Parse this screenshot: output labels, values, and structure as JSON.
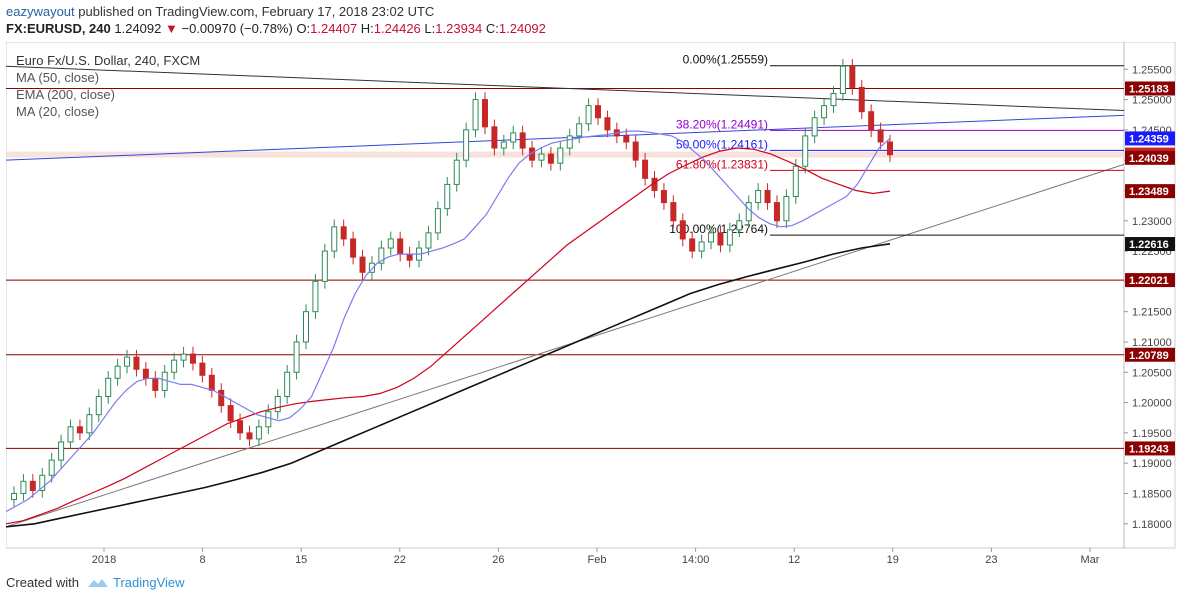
{
  "header": {
    "author": "eazywayout",
    "published": "published on TradingView.com, February 17, 2018 23:02 UTC",
    "symbol": "FX:EURUSD, 240",
    "last": "1.24092",
    "change": "−0.00970 (−0.78%)",
    "open_label": "O:",
    "open": "1.24407",
    "high_label": "H:",
    "high": "1.24426",
    "low_label": "L:",
    "low": "1.23934",
    "close_label": "C:",
    "close": "1.24092"
  },
  "legend": {
    "title": "Euro Fx/U.S. Dollar, 240, FXCM",
    "ma50": "MA (50, close)",
    "ema200": "EMA (200, close)",
    "ma20": "MA (20, close)"
  },
  "footer": {
    "created_with": "Created with",
    "brand": "TradingView",
    "logo_icon": "tradingview-logo-icon"
  },
  "colors": {
    "up": "#2e8b57",
    "down": "#c62828",
    "ma20": "#7b7bf0",
    "ma50": "#d0021b",
    "ema200": "#111111",
    "resistance": "#8b0000",
    "fib0": "#111111",
    "fib382": "#9400d3",
    "fib50": "#1a1aff",
    "fib618": "#d0021b",
    "trend": "#7a7a7a"
  },
  "chart_data": {
    "type": "candlestick",
    "title": "Euro Fx/U.S. Dollar, 240, FXCM",
    "ylim": [
      1.176,
      1.2595
    ],
    "x_ticks": [
      "2018",
      "8",
      "15",
      "22",
      "26",
      "Feb",
      "14:00",
      "12",
      "19",
      "23",
      "Mar"
    ],
    "y_ticks": [
      "1.25500",
      "1.25000",
      "1.24500",
      "1.24000",
      "1.23500",
      "1.23000",
      "1.22500",
      "1.22000",
      "1.21500",
      "1.21000",
      "1.20500",
      "1.20000",
      "1.19500",
      "1.19000",
      "1.18500",
      "1.18000"
    ],
    "horizontal_levels": [
      {
        "label": "1.25183",
        "value": 1.25183,
        "color": "#8b0000"
      },
      {
        "label": "1.22021",
        "value": 1.22021,
        "color": "#8b0000"
      },
      {
        "label": "1.20789",
        "value": 1.20789,
        "color": "#8b0000"
      },
      {
        "label": "1.19243",
        "value": 1.19243,
        "color": "#8b0000"
      }
    ],
    "price_labels": [
      {
        "text": "1.25183",
        "value": 1.25183,
        "bg": "#8b0000"
      },
      {
        "text": "1.24359",
        "value": 1.24359,
        "bg": "#1a1aff"
      },
      {
        "text": "1.24092",
        "value": 1.24092,
        "bg": "#c62828"
      },
      {
        "text": "1.24039",
        "value": 1.24039,
        "bg": "#8b0000"
      },
      {
        "text": "1.23489",
        "value": 1.23489,
        "bg": "#8b0000"
      },
      {
        "text": "1.22616",
        "value": 1.22616,
        "bg": "#111111"
      },
      {
        "text": "1.22021",
        "value": 1.22021,
        "bg": "#8b0000"
      },
      {
        "text": "1.20789",
        "value": 1.20789,
        "bg": "#8b0000"
      },
      {
        "text": "1.19243",
        "value": 1.19243,
        "bg": "#8b0000"
      }
    ],
    "fibonacci": [
      {
        "label": "0.00%(1.25559)",
        "value": 1.25559,
        "color": "#111111"
      },
      {
        "label": "38.20%(1.24491)",
        "value": 1.24491,
        "color": "#9400d3"
      },
      {
        "label": "50.00%(1.24161)",
        "value": 1.24161,
        "color": "#1a1aff"
      },
      {
        "label": "61.80%(1.23831)",
        "value": 1.23831,
        "color": "#d0021b"
      },
      {
        "label": "100.00%(1.22764)",
        "value": 1.22764,
        "color": "#111111"
      }
    ],
    "closes": [
      1.185,
      1.187,
      1.1855,
      1.188,
      1.1905,
      1.1935,
      1.196,
      1.195,
      1.198,
      1.201,
      1.204,
      1.206,
      1.2075,
      1.2055,
      1.204,
      1.202,
      1.205,
      1.207,
      1.208,
      1.2065,
      1.2045,
      1.202,
      1.1995,
      1.197,
      1.195,
      1.194,
      1.196,
      1.1985,
      1.201,
      1.205,
      1.21,
      1.215,
      1.22,
      1.225,
      1.229,
      1.227,
      1.224,
      1.2215,
      1.223,
      1.2255,
      1.227,
      1.2245,
      1.2235,
      1.2255,
      1.228,
      1.232,
      1.236,
      1.24,
      1.245,
      1.25,
      1.2455,
      1.242,
      1.243,
      1.2445,
      1.242,
      1.24,
      1.241,
      1.2395,
      1.242,
      1.244,
      1.246,
      1.249,
      1.247,
      1.245,
      1.244,
      1.243,
      1.24,
      1.237,
      1.235,
      1.233,
      1.23,
      1.227,
      1.225,
      1.2265,
      1.228,
      1.226,
      1.2285,
      1.23,
      1.233,
      1.235,
      1.233,
      1.23,
      1.234,
      1.239,
      1.244,
      1.247,
      1.249,
      1.251,
      1.2555,
      1.252,
      1.248,
      1.245,
      1.243,
      1.2409
    ],
    "ma20": [
      1.182,
      1.183,
      1.184,
      1.1855,
      1.187,
      1.189,
      1.191,
      1.193,
      1.195,
      1.1975,
      1.2,
      1.202,
      1.2035,
      1.204,
      1.204,
      1.2035,
      1.203,
      1.203,
      1.2025,
      1.202,
      1.201,
      1.2,
      1.199,
      1.198,
      1.1975,
      1.197,
      1.1975,
      1.199,
      1.201,
      1.205,
      1.209,
      1.214,
      1.218,
      1.221,
      1.223,
      1.224,
      1.2245,
      1.2245,
      1.2245,
      1.225,
      1.2255,
      1.2262,
      1.227,
      1.229,
      1.231,
      1.234,
      1.237,
      1.2395,
      1.241,
      1.242,
      1.2428,
      1.2432,
      1.2435,
      1.2438,
      1.244,
      1.2442,
      1.2445,
      1.2448,
      1.2448,
      1.2446,
      1.2443,
      1.244,
      1.243,
      1.2415,
      1.24,
      1.238,
      1.236,
      1.234,
      1.232,
      1.2305,
      1.2295,
      1.229,
      1.2292,
      1.23,
      1.231,
      1.232,
      1.233,
      1.234,
      1.236,
      1.239,
      1.242,
      1.2436
    ],
    "ma50": [
      1.18,
      1.1805,
      1.1815,
      1.1825,
      1.1838,
      1.185,
      1.1862,
      1.1875,
      1.189,
      1.1905,
      1.192,
      1.1935,
      1.195,
      1.1965,
      1.1975,
      1.1985,
      1.1992,
      1.1998,
      1.2002,
      1.2005,
      1.2008,
      1.201,
      1.2015,
      1.2025,
      1.204,
      1.206,
      1.2085,
      1.211,
      1.2135,
      1.216,
      1.2185,
      1.221,
      1.2235,
      1.226,
      1.228,
      1.23,
      1.232,
      1.234,
      1.236,
      1.2378,
      1.2392,
      1.2405,
      1.2415,
      1.242,
      1.2418,
      1.241,
      1.2398,
      1.2385,
      1.237,
      1.236,
      1.235,
      1.2345,
      1.2349
    ],
    "ema200": [
      1.1795,
      1.18,
      1.181,
      1.182,
      1.183,
      1.184,
      1.185,
      1.186,
      1.1872,
      1.1885,
      1.19,
      1.192,
      1.194,
      1.196,
      1.198,
      1.2,
      1.202,
      1.204,
      1.206,
      1.208,
      1.21,
      1.212,
      1.214,
      1.216,
      1.218,
      1.2195,
      1.2208,
      1.222,
      1.2232,
      1.2245,
      1.2255,
      1.2262
    ]
  }
}
